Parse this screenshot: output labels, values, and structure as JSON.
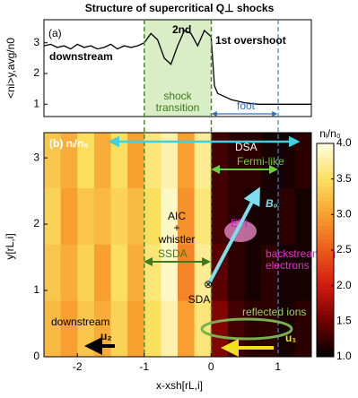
{
  "chart_data": [
    {
      "type": "line",
      "title": "Structure of supercritical Q⊥ shocks",
      "panel_label": "(a)",
      "y_label": "<ni>y,avg/n0",
      "x": [
        -2.5,
        -2.4,
        -2.3,
        -2.2,
        -2.1,
        -2.0,
        -1.9,
        -1.8,
        -1.7,
        -1.6,
        -1.5,
        -1.4,
        -1.3,
        -1.2,
        -1.1,
        -1.0,
        -0.9,
        -0.8,
        -0.7,
        -0.6,
        -0.5,
        -0.4,
        -0.3,
        -0.2,
        -0.1,
        0,
        0.05,
        0.1,
        0.2,
        0.3,
        0.5,
        0.7,
        0.9,
        1.1,
        1.3,
        1.5
      ],
      "values": [
        2.9,
        2.95,
        2.85,
        2.9,
        2.8,
        2.95,
        2.85,
        2.9,
        2.8,
        2.85,
        2.95,
        2.8,
        2.9,
        2.85,
        2.9,
        3.0,
        3.3,
        3.1,
        2.5,
        2.3,
        2.9,
        3.4,
        3.3,
        2.9,
        3.4,
        3.2,
        1.6,
        1.35,
        1.25,
        1.15,
        1.05,
        1.0,
        1.0,
        1.0,
        1.0,
        1.0
      ],
      "color": "#000000",
      "xlim": [
        -2.5,
        1.5
      ],
      "ylim": [
        0.6,
        3.75
      ],
      "yticks": [
        1,
        2,
        3
      ],
      "annotations": [
        "2nd",
        "1st overshoot",
        "downstream",
        "shock",
        "transition",
        "foot"
      ]
    },
    {
      "type": "heatmap",
      "panel_label": "(b) nᵢ/n₀",
      "x_label": "x-xsh[rL,i]",
      "y_label": "y[rL,i]",
      "xlim": [
        -2.5,
        1.5
      ],
      "ylim": [
        0,
        3.38
      ],
      "xticks": [
        -2,
        -1,
        0,
        1
      ],
      "yticks": [
        0,
        1,
        2,
        3
      ],
      "x_edges": [
        -2.5,
        -2.25,
        -2.0,
        -1.75,
        -1.5,
        -1.25,
        -1.0,
        -0.75,
        -0.5,
        -0.25,
        0,
        0.25,
        0.5,
        0.75,
        1.0,
        1.25,
        1.5
      ],
      "y_edges": [
        0,
        0.85,
        1.7,
        2.55,
        3.38
      ],
      "values": [
        [
          3.2,
          3.0,
          3.3,
          3.1,
          3.4,
          3.0,
          3.5,
          3.8,
          3.0,
          3.6,
          1.6,
          1.3,
          1.2,
          1.2,
          1.1,
          1.2
        ],
        [
          3.3,
          3.1,
          3.4,
          3.0,
          3.5,
          3.1,
          3.6,
          3.9,
          2.8,
          3.7,
          1.4,
          1.2,
          1.1,
          1.2,
          1.1,
          1.1
        ],
        [
          3.4,
          3.0,
          3.3,
          3.2,
          3.4,
          3.2,
          3.5,
          3.9,
          2.9,
          3.6,
          1.3,
          1.2,
          1.1,
          1.1,
          1.2,
          1.1
        ],
        [
          3.3,
          3.1,
          3.5,
          3.1,
          3.5,
          3.0,
          3.6,
          3.8,
          3.0,
          3.7,
          1.3,
          1.2,
          1.2,
          1.1,
          1.1,
          1.2
        ]
      ],
      "colormap": [
        "#000000",
        "#700000",
        "#d01a10",
        "#ec5a1a",
        "#f7a030",
        "#fbe060",
        "#fffde0"
      ],
      "clim": [
        1,
        4
      ],
      "colorbar_title": "nᵢ/n₀",
      "colorbar_ticks": [
        {
          "value": 1,
          "label": "1.0"
        },
        {
          "value": 1.5,
          "label": "1.5"
        },
        {
          "value": 2,
          "label": "2.0"
        },
        {
          "value": 2.5,
          "label": "2.5"
        },
        {
          "value": 3,
          "label": "3.0"
        },
        {
          "value": 3.5,
          "label": "3.5"
        },
        {
          "value": 4,
          "label": "4.0"
        }
      ],
      "annotations": [
        "DSA",
        "Fermi-like",
        "AIC",
        "+",
        "whistler",
        "EFI",
        "B₀",
        "backstreaming",
        "electrons",
        "SSDA",
        "SDA",
        "reflected ions",
        "downstream",
        "u₂",
        "u₁",
        "⊗"
      ]
    }
  ]
}
